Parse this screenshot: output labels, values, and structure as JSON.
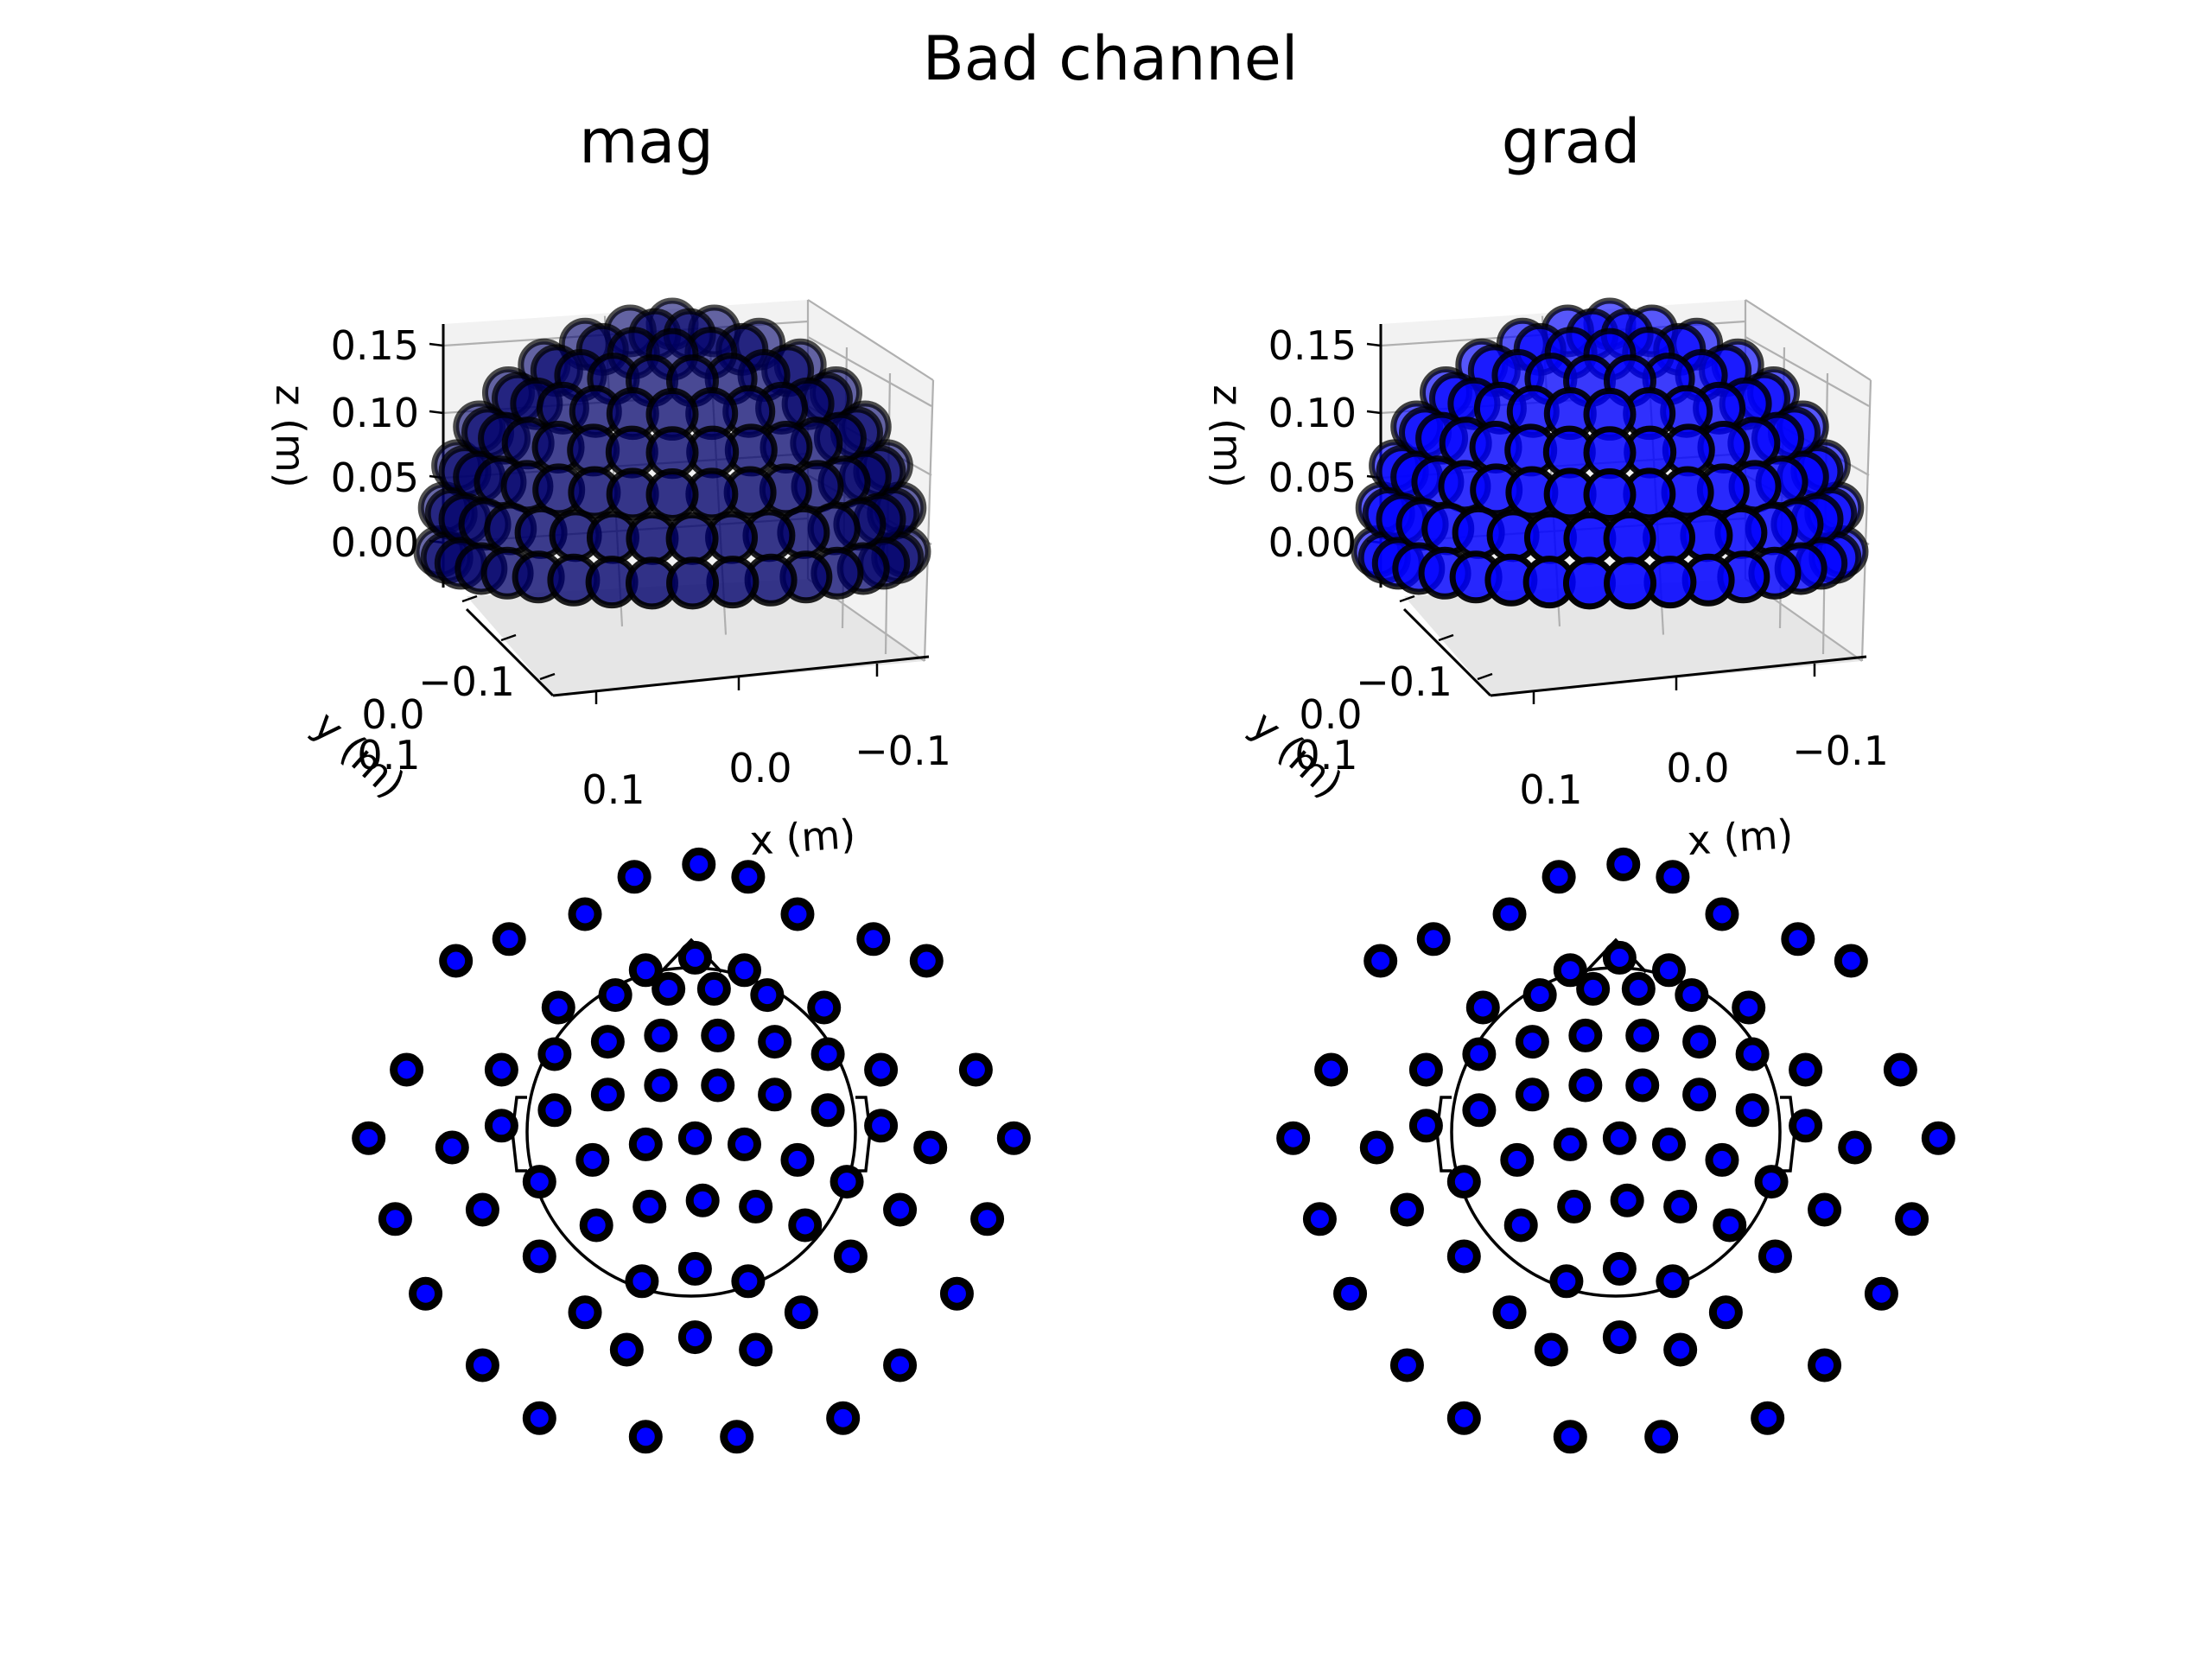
{
  "title": "Bad channel",
  "colors": {
    "sensor_fill": "#0000ff",
    "sensor_edge": "#000000",
    "pane": "#f2f2f2",
    "grid": "#b0b0b0"
  },
  "chart_data": [
    {
      "type": "scatter3d",
      "title": "mag",
      "xlabel": "x (m)",
      "ylabel": "y (m)",
      "zlabel": "z (m)",
      "xticks": [
        "0.1",
        "0.0",
        "−0.1"
      ],
      "yticks": [
        "−0.1",
        "0.0",
        "0.1"
      ],
      "zticks": [
        "0.15",
        "0.10",
        "0.05",
        "0.00"
      ],
      "zlim": [
        -0.03,
        0.16
      ],
      "marker_color": "#0000ff",
      "marker_shade": 0.42,
      "marker_alpha": 0.75
    },
    {
      "type": "scatter3d",
      "title": "grad",
      "xlabel": "x (m)",
      "ylabel": "y (m)",
      "zlabel": "z (m)",
      "xticks": [
        "0.1",
        "0.0",
        "−0.1"
      ],
      "yticks": [
        "−0.1",
        "0.0",
        "0.1"
      ],
      "zticks": [
        "0.15",
        "0.10",
        "0.05",
        "0.00"
      ],
      "zlim": [
        -0.03,
        0.16
      ],
      "marker_color": "#0000ff",
      "marker_shade": 1.0,
      "marker_alpha": 0.9
    },
    {
      "type": "scatter",
      "subtype": "sensor-topomap",
      "marker_color": "#00008c",
      "head_outline": true,
      "points": [
        [
          -0.12,
          0.52
        ],
        [
          0.01,
          0.56
        ],
        [
          0.14,
          0.52
        ],
        [
          -0.35,
          0.4
        ],
        [
          -0.2,
          0.44
        ],
        [
          -0.06,
          0.46
        ],
        [
          0.06,
          0.46
        ],
        [
          0.2,
          0.44
        ],
        [
          0.35,
          0.4
        ],
        [
          -0.5,
          0.2
        ],
        [
          -0.36,
          0.25
        ],
        [
          -0.22,
          0.29
        ],
        [
          -0.08,
          0.31
        ],
        [
          0.07,
          0.31
        ],
        [
          0.22,
          0.29
        ],
        [
          0.36,
          0.25
        ],
        [
          0.5,
          0.2
        ],
        [
          -0.63,
          -0.05
        ],
        [
          -0.5,
          0.02
        ],
        [
          -0.36,
          0.07
        ],
        [
          -0.22,
          0.12
        ],
        [
          -0.08,
          0.15
        ],
        [
          0.07,
          0.15
        ],
        [
          0.22,
          0.12
        ],
        [
          0.36,
          0.07
        ],
        [
          0.5,
          0.02
        ],
        [
          0.63,
          -0.05
        ],
        [
          -0.55,
          -0.25
        ],
        [
          -0.4,
          -0.16
        ],
        [
          -0.26,
          -0.09
        ],
        [
          -0.12,
          -0.04
        ],
        [
          0.01,
          -0.02
        ],
        [
          0.14,
          -0.04
        ],
        [
          0.28,
          -0.09
        ],
        [
          0.41,
          -0.16
        ],
        [
          0.55,
          -0.25
        ],
        [
          -0.4,
          -0.4
        ],
        [
          -0.25,
          -0.3
        ],
        [
          -0.11,
          -0.24
        ],
        [
          0.03,
          -0.22
        ],
        [
          0.17,
          -0.24
        ],
        [
          0.3,
          -0.3
        ],
        [
          0.42,
          -0.4
        ],
        [
          -0.28,
          -0.58
        ],
        [
          -0.13,
          -0.48
        ],
        [
          0.01,
          -0.44
        ],
        [
          0.15,
          -0.48
        ],
        [
          0.29,
          -0.58
        ],
        [
          -0.17,
          -0.7
        ],
        [
          0.01,
          -0.66
        ],
        [
          0.17,
          -0.7
        ]
      ],
      "title": ""
    },
    {
      "type": "scatter",
      "subtype": "sensor-topomap",
      "marker_color": "#0000ff",
      "head_outline": true,
      "title": ""
    }
  ]
}
